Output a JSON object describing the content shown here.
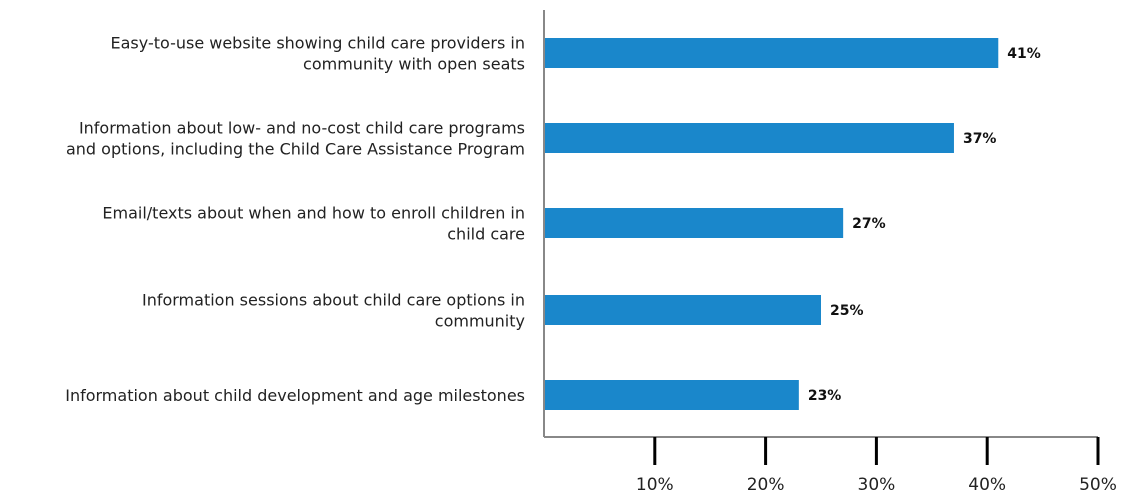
{
  "chart_data": {
    "type": "bar",
    "orientation": "horizontal",
    "categories": [
      [
        "Easy-to-use website showing child care providers in",
        "community with open seats"
      ],
      [
        "Information about low- and no-cost child care programs",
        "and options, including the Child Care Assistance Program"
      ],
      [
        "Email/texts about when and how to enroll children in",
        "child care"
      ],
      [
        "Information sessions about child care options in",
        "community"
      ],
      [
        "Information about child development and age milestones"
      ]
    ],
    "values": [
      41,
      37,
      27,
      25,
      23
    ],
    "value_labels": [
      "41%",
      "37%",
      "27%",
      "25%",
      "23%"
    ],
    "xlim": [
      0,
      50
    ],
    "x_ticks": [
      10,
      20,
      30,
      40,
      50
    ],
    "x_tick_labels": [
      "10%",
      "20%",
      "30%",
      "40%",
      "50%"
    ],
    "title": "",
    "xlabel": "",
    "ylabel": "",
    "grid": false,
    "bar_color": "#1a87cb",
    "axis_color": "#888888",
    "tick_color": "#000000"
  }
}
